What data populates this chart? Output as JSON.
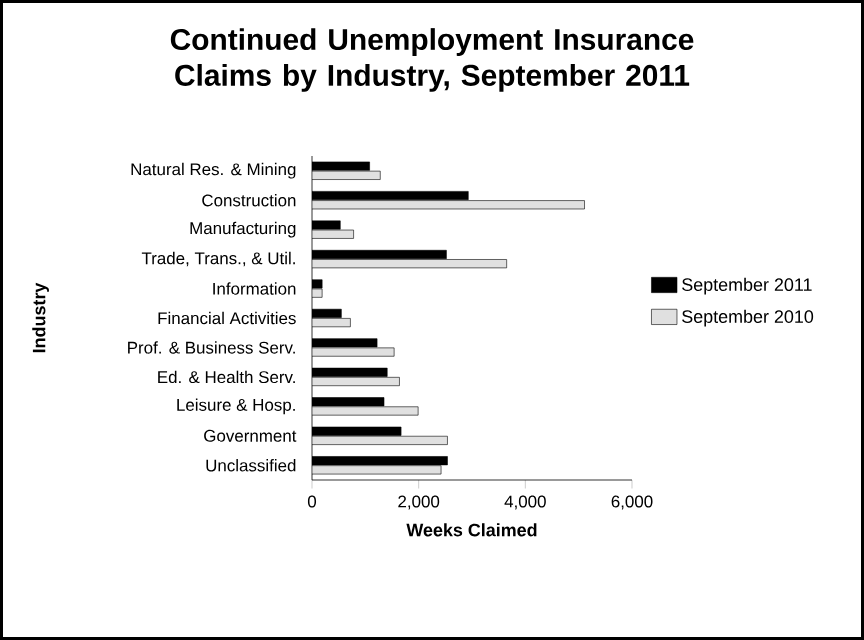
{
  "chart_data": {
    "type": "bar",
    "orientation": "horizontal",
    "title": "Continued Unemployment Insurance Claims by Industry, September 2011",
    "xlabel": "Weeks Claimed",
    "ylabel": "Industry",
    "categories": [
      "Natural Res. & Mining",
      "Construction",
      "Manufacturing",
      "Trade, Trans., & Util.",
      "Information",
      "Financial Activities",
      "Prof. & Business Serv.",
      "Ed. & Health Serv.",
      "Leisure & Hosp.",
      "Government",
      "Unclassified"
    ],
    "series": [
      {
        "name": "September 2011",
        "color": "#000000",
        "values": [
          1080,
          2930,
          530,
          2520,
          190,
          550,
          1220,
          1410,
          1350,
          1670,
          2540
        ]
      },
      {
        "name": "September 2010",
        "color": "#e0e0e0",
        "values": [
          1280,
          5110,
          780,
          3650,
          190,
          720,
          1540,
          1640,
          1990,
          2540,
          2420
        ]
      }
    ],
    "xlim": [
      0,
      6000
    ],
    "xticks": [
      {
        "value": 0,
        "label": "0"
      },
      {
        "value": 2000,
        "label": "2,000"
      },
      {
        "value": 4000,
        "label": "4,000"
      },
      {
        "value": 6000,
        "label": "6,000"
      }
    ],
    "legend": "right",
    "grid": false
  }
}
